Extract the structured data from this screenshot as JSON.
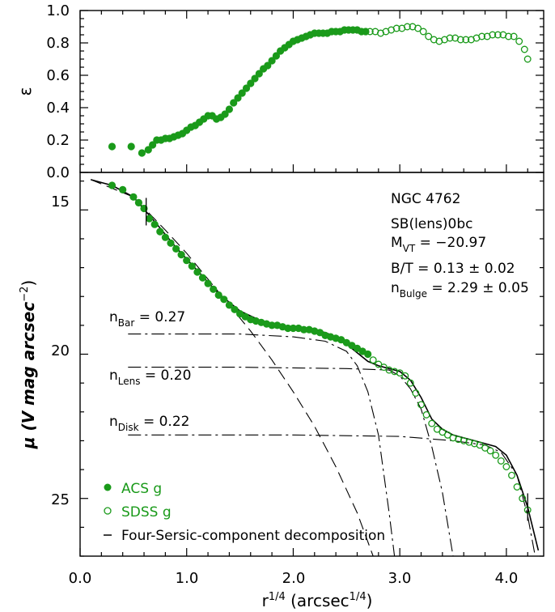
{
  "figure": {
    "x_axis": {
      "label_base": "r",
      "label_sup1": "1/4",
      "label_mid": " (arcsec",
      "label_sup2": "1/4",
      "label_end": ")",
      "range": [
        0.0,
        4.35
      ],
      "ticks": [
        0.0,
        1.0,
        2.0,
        3.0,
        4.0
      ],
      "tick_labels": [
        "0.0",
        "1.0",
        "2.0",
        "3.0",
        "4.0"
      ]
    },
    "top_panel": {
      "ylabel": "ε",
      "ylim": [
        0.0,
        1.0
      ],
      "ticks": [
        0.0,
        0.2,
        0.4,
        0.6,
        0.8,
        1.0
      ],
      "tick_labels": [
        "0.0",
        "0.2",
        "0.4",
        "0.6",
        "0.8",
        "1.0"
      ]
    },
    "bottom_panel": {
      "ylabel_main": "μ (V mag arcsec",
      "ylabel_sup": "−2",
      "ylabel_end": ")",
      "ylim": [
        13.7,
        27.0
      ],
      "ticks": [
        15,
        20,
        25
      ],
      "tick_labels": [
        "15",
        "20",
        "25"
      ]
    },
    "annotations": {
      "galaxy": "NGC 4762",
      "morphology": "SB(lens)0bc",
      "mag_prefix": "M",
      "mag_sub": "VT",
      "mag_value": " =  −20.97",
      "bt": "B/T = 0.13 ± 0.02",
      "nbulge_prefix": "n",
      "nbulge_sub": "Bulge",
      "nbulge_value": " = 2.29 ± 0.05",
      "nbar_prefix": "n",
      "nbar_sub": "Bar",
      "nbar_value": " = 0.27",
      "nlens_prefix": "n",
      "nlens_sub": "Lens",
      "nlens_value": " = 0.20",
      "ndisk_prefix": "n",
      "ndisk_sub": "Disk",
      "ndisk_value": " = 0.22"
    },
    "legend": {
      "acs": "ACS g",
      "sdss": "SDSS g",
      "model": "Four-Sersic-component decomposition"
    },
    "colors": {
      "data": "#1a9a1a",
      "model": "#000000"
    }
  },
  "chart_data": [
    {
      "type": "scatter",
      "panel": "top",
      "title": "",
      "xlabel": "r^1/4 (arcsec^1/4)",
      "ylabel": "ε",
      "xlim": [
        0.0,
        4.35
      ],
      "ylim": [
        0.0,
        1.0
      ],
      "series": [
        {
          "name": "ACS g",
          "marker": "filled-circle",
          "x": [
            0.3,
            0.48,
            0.58,
            0.64,
            0.68,
            0.72,
            0.76,
            0.8,
            0.84,
            0.88,
            0.92,
            0.96,
            1.0,
            1.04,
            1.08,
            1.12,
            1.16,
            1.2,
            1.24,
            1.28,
            1.32,
            1.36,
            1.4,
            1.44,
            1.48,
            1.52,
            1.56,
            1.6,
            1.64,
            1.68,
            1.72,
            1.76,
            1.8,
            1.84,
            1.88,
            1.92,
            1.96,
            2.0,
            2.04,
            2.08,
            2.12,
            2.16,
            2.2,
            2.24,
            2.28,
            2.32,
            2.36,
            2.4,
            2.44,
            2.48,
            2.52,
            2.56,
            2.6,
            2.64,
            2.68
          ],
          "y": [
            0.16,
            0.16,
            0.12,
            0.14,
            0.17,
            0.2,
            0.2,
            0.21,
            0.21,
            0.22,
            0.23,
            0.24,
            0.26,
            0.28,
            0.29,
            0.31,
            0.33,
            0.35,
            0.35,
            0.33,
            0.34,
            0.36,
            0.39,
            0.43,
            0.46,
            0.49,
            0.52,
            0.55,
            0.58,
            0.61,
            0.64,
            0.66,
            0.69,
            0.72,
            0.75,
            0.77,
            0.79,
            0.81,
            0.82,
            0.83,
            0.84,
            0.85,
            0.86,
            0.86,
            0.86,
            0.86,
            0.87,
            0.87,
            0.87,
            0.88,
            0.88,
            0.88,
            0.88,
            0.87,
            0.87
          ]
        },
        {
          "name": "SDSS g",
          "marker": "open-circle",
          "x": [
            2.72,
            2.77,
            2.82,
            2.87,
            2.92,
            2.97,
            3.02,
            3.07,
            3.12,
            3.17,
            3.22,
            3.27,
            3.32,
            3.37,
            3.42,
            3.47,
            3.52,
            3.57,
            3.62,
            3.67,
            3.72,
            3.77,
            3.82,
            3.87,
            3.92,
            3.97,
            4.02,
            4.07,
            4.12,
            4.17,
            4.2
          ],
          "y": [
            0.87,
            0.87,
            0.86,
            0.87,
            0.88,
            0.89,
            0.89,
            0.9,
            0.9,
            0.89,
            0.87,
            0.84,
            0.82,
            0.81,
            0.82,
            0.83,
            0.83,
            0.82,
            0.82,
            0.82,
            0.83,
            0.84,
            0.84,
            0.85,
            0.85,
            0.85,
            0.84,
            0.84,
            0.81,
            0.76,
            0.7
          ]
        }
      ]
    },
    {
      "type": "scatter",
      "panel": "bottom",
      "title": "NGC 4762",
      "xlabel": "r^1/4 (arcsec^1/4)",
      "ylabel": "μ (V mag arcsec^-2)",
      "xlim": [
        0.0,
        4.35
      ],
      "ylim": [
        27.0,
        13.7
      ],
      "y_inverted": true,
      "fit_window_markers_x": [
        0.62,
        4.2
      ],
      "series": [
        {
          "name": "ACS g",
          "marker": "filled-circle",
          "x": [
            0.3,
            0.4,
            0.5,
            0.55,
            0.6,
            0.65,
            0.7,
            0.75,
            0.8,
            0.85,
            0.9,
            0.95,
            1.0,
            1.05,
            1.1,
            1.15,
            1.2,
            1.25,
            1.3,
            1.35,
            1.4,
            1.45,
            1.5,
            1.55,
            1.6,
            1.65,
            1.7,
            1.75,
            1.8,
            1.85,
            1.9,
            1.95,
            2.0,
            2.05,
            2.1,
            2.15,
            2.2,
            2.25,
            2.3,
            2.35,
            2.4,
            2.45,
            2.5,
            2.55,
            2.6,
            2.65,
            2.7
          ],
          "y": [
            14.15,
            14.3,
            14.55,
            14.75,
            14.95,
            15.3,
            15.5,
            15.75,
            15.95,
            16.15,
            16.35,
            16.55,
            16.75,
            16.95,
            17.15,
            17.35,
            17.55,
            17.75,
            17.95,
            18.1,
            18.3,
            18.45,
            18.6,
            18.7,
            18.8,
            18.85,
            18.9,
            18.95,
            19.0,
            19.0,
            19.05,
            19.1,
            19.1,
            19.1,
            19.15,
            19.15,
            19.2,
            19.25,
            19.35,
            19.4,
            19.45,
            19.5,
            19.6,
            19.7,
            19.8,
            19.9,
            20.0
          ]
        },
        {
          "name": "SDSS g",
          "marker": "open-circle",
          "x": [
            2.75,
            2.8,
            2.85,
            2.9,
            2.95,
            3.0,
            3.05,
            3.1,
            3.15,
            3.2,
            3.25,
            3.3,
            3.35,
            3.4,
            3.45,
            3.5,
            3.55,
            3.6,
            3.65,
            3.7,
            3.75,
            3.8,
            3.85,
            3.9,
            3.95,
            4.0,
            4.05,
            4.1,
            4.15,
            4.2
          ],
          "y": [
            20.2,
            20.35,
            20.45,
            20.55,
            20.6,
            20.65,
            20.75,
            21.0,
            21.35,
            21.75,
            22.1,
            22.4,
            22.6,
            22.7,
            22.8,
            22.9,
            22.95,
            23.0,
            23.05,
            23.1,
            23.15,
            23.25,
            23.35,
            23.5,
            23.7,
            23.9,
            24.2,
            24.6,
            25.0,
            25.4
          ]
        },
        {
          "name": "Total model",
          "style": "solid",
          "x": [
            0.1,
            0.3,
            0.5,
            0.7,
            0.9,
            1.1,
            1.3,
            1.5,
            1.7,
            1.9,
            2.1,
            2.3,
            2.4,
            2.5,
            2.6,
            2.7,
            2.8,
            2.9,
            3.0,
            3.1,
            3.2,
            3.3,
            3.4,
            3.5,
            3.6,
            3.7,
            3.8,
            3.9,
            4.0,
            4.1,
            4.2,
            4.3
          ],
          "y": [
            13.95,
            14.15,
            14.55,
            15.4,
            16.3,
            17.1,
            17.9,
            18.5,
            18.85,
            19.0,
            19.1,
            19.25,
            19.4,
            19.65,
            19.95,
            20.25,
            20.4,
            20.5,
            20.6,
            20.9,
            21.5,
            22.25,
            22.6,
            22.8,
            22.9,
            23.0,
            23.1,
            23.2,
            23.5,
            24.2,
            25.3,
            26.8
          ]
        },
        {
          "name": "Bulge (n=2.29)",
          "style": "dashed",
          "x": [
            0.1,
            0.5,
            0.8,
            1.0,
            1.2,
            1.4,
            1.6,
            1.8,
            2.0,
            2.2,
            2.4,
            2.6,
            2.75
          ],
          "y": [
            13.95,
            14.55,
            15.7,
            16.5,
            17.4,
            18.3,
            19.2,
            20.2,
            21.3,
            22.5,
            23.9,
            25.5,
            27.0
          ]
        },
        {
          "name": "Bar (n=0.27)",
          "style": "dash-dot",
          "x": [
            0.45,
            1.0,
            1.5,
            2.0,
            2.3,
            2.5,
            2.6,
            2.7,
            2.8,
            2.9,
            2.95
          ],
          "y": [
            19.3,
            19.3,
            19.3,
            19.4,
            19.55,
            19.9,
            20.4,
            21.3,
            22.8,
            25.5,
            27.0
          ]
        },
        {
          "name": "Lens (n=0.20)",
          "style": "dash-dot",
          "x": [
            0.45,
            1.5,
            2.5,
            2.9,
            3.0,
            3.1,
            3.2,
            3.3,
            3.4,
            3.5
          ],
          "y": [
            20.45,
            20.45,
            20.5,
            20.55,
            20.75,
            21.2,
            21.9,
            23.2,
            24.8,
            27.0
          ]
        },
        {
          "name": "Disk (n=0.22)",
          "style": "dash-dot",
          "x": [
            0.45,
            2.0,
            3.0,
            3.5,
            3.8,
            3.95,
            4.1,
            4.2,
            4.27
          ],
          "y": [
            22.8,
            22.8,
            22.85,
            23.0,
            23.15,
            23.4,
            24.2,
            25.6,
            27.0
          ]
        }
      ]
    }
  ]
}
